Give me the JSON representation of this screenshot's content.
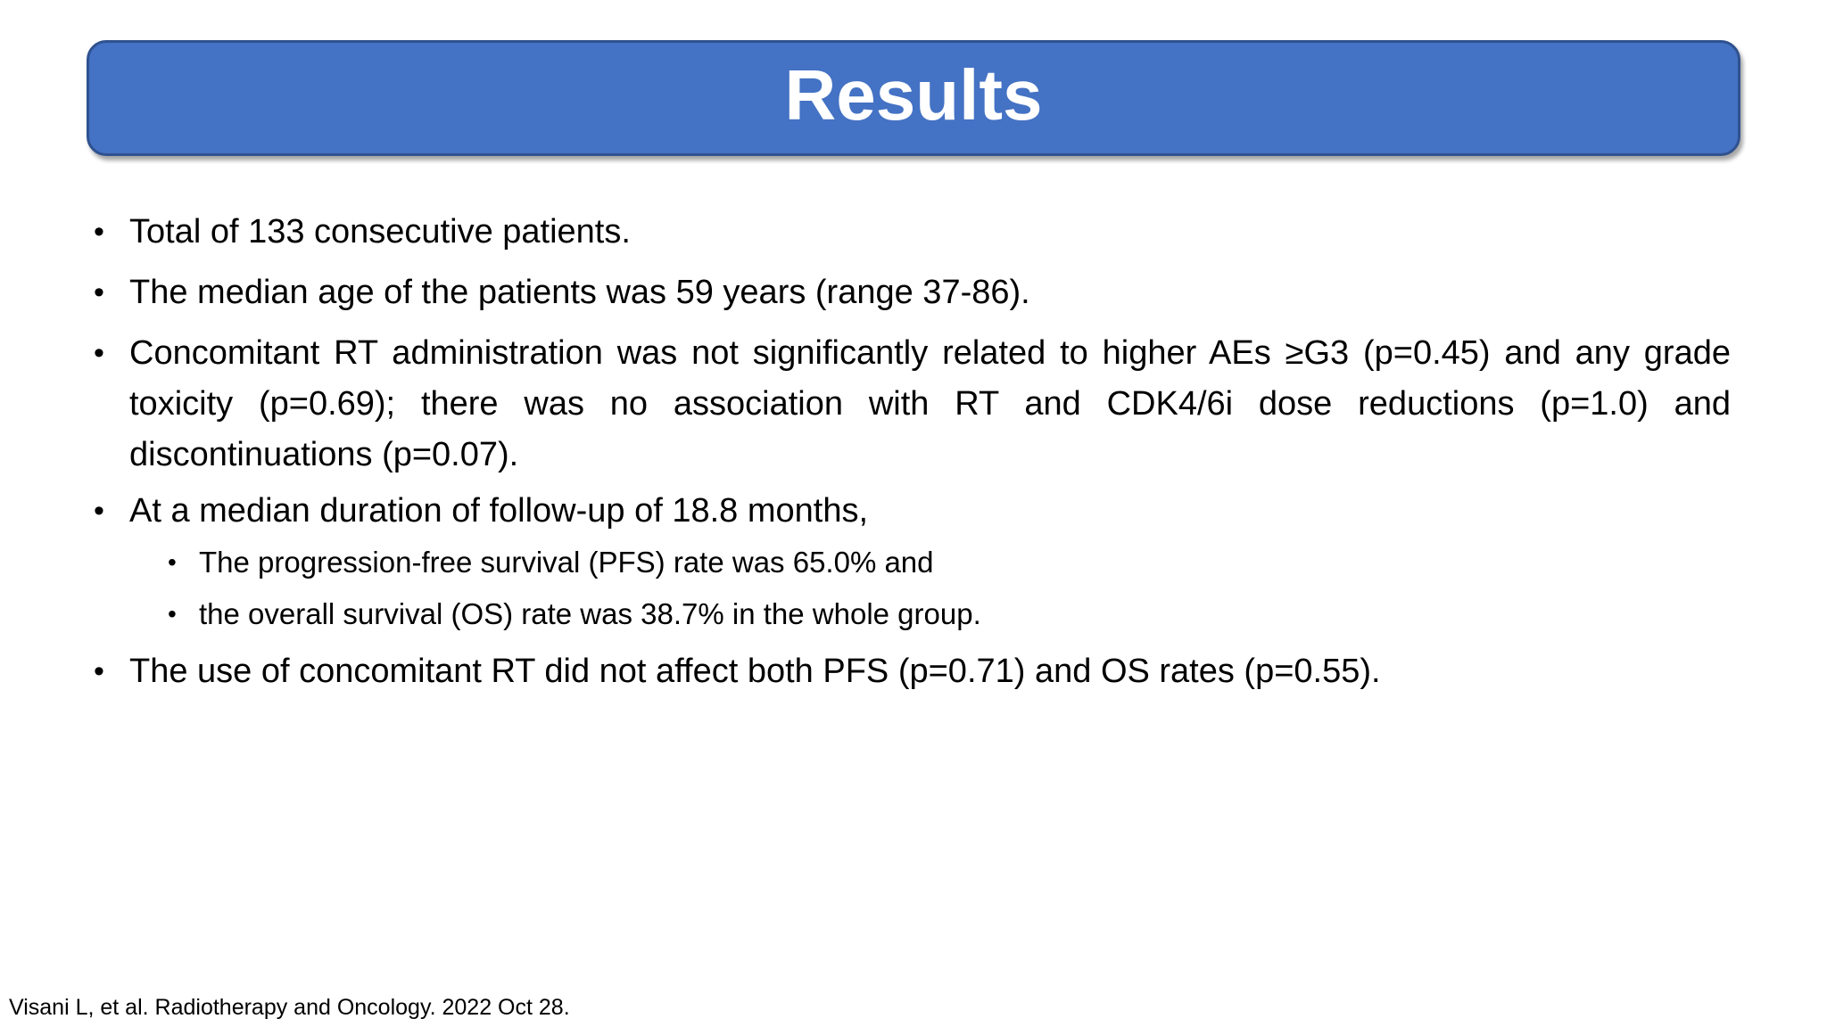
{
  "slide": {
    "title": "Results",
    "bullet_char": "•",
    "bullets": [
      {
        "level": 1,
        "text": "Total of 133 consecutive patients."
      },
      {
        "level": 1,
        "text": "The median age of the patients was 59 years (range 37-86)."
      },
      {
        "level": 1,
        "text": "Concomitant RT administration was not significantly related to higher AEs ≥G3 (p=0.45) and any grade toxicity (p=0.69); there was no association with RT and CDK4/6i dose reductions (p=1.0) and discontinuations (p=0.07)."
      },
      {
        "level": 1,
        "text": "At a median duration of follow-up of 18.8 months,"
      },
      {
        "level": 2,
        "text": "The progression-free survival (PFS) rate was 65.0% and"
      },
      {
        "level": 2,
        "text": "the overall survival (OS) rate was 38.7% in the whole group."
      },
      {
        "level": 1,
        "text": "The use of concomitant RT did not affect both PFS (p=0.71) and OS rates (p=0.55)."
      }
    ],
    "footer": "Visani L, et al. Radiotherapy and Oncology. 2022 Oct 28.",
    "colors": {
      "background": "#FFFFFF",
      "banner_fill": "#4472C4",
      "banner_border": "#2F528F",
      "title_text": "#FFFFFF",
      "body_text": "#000000"
    }
  }
}
